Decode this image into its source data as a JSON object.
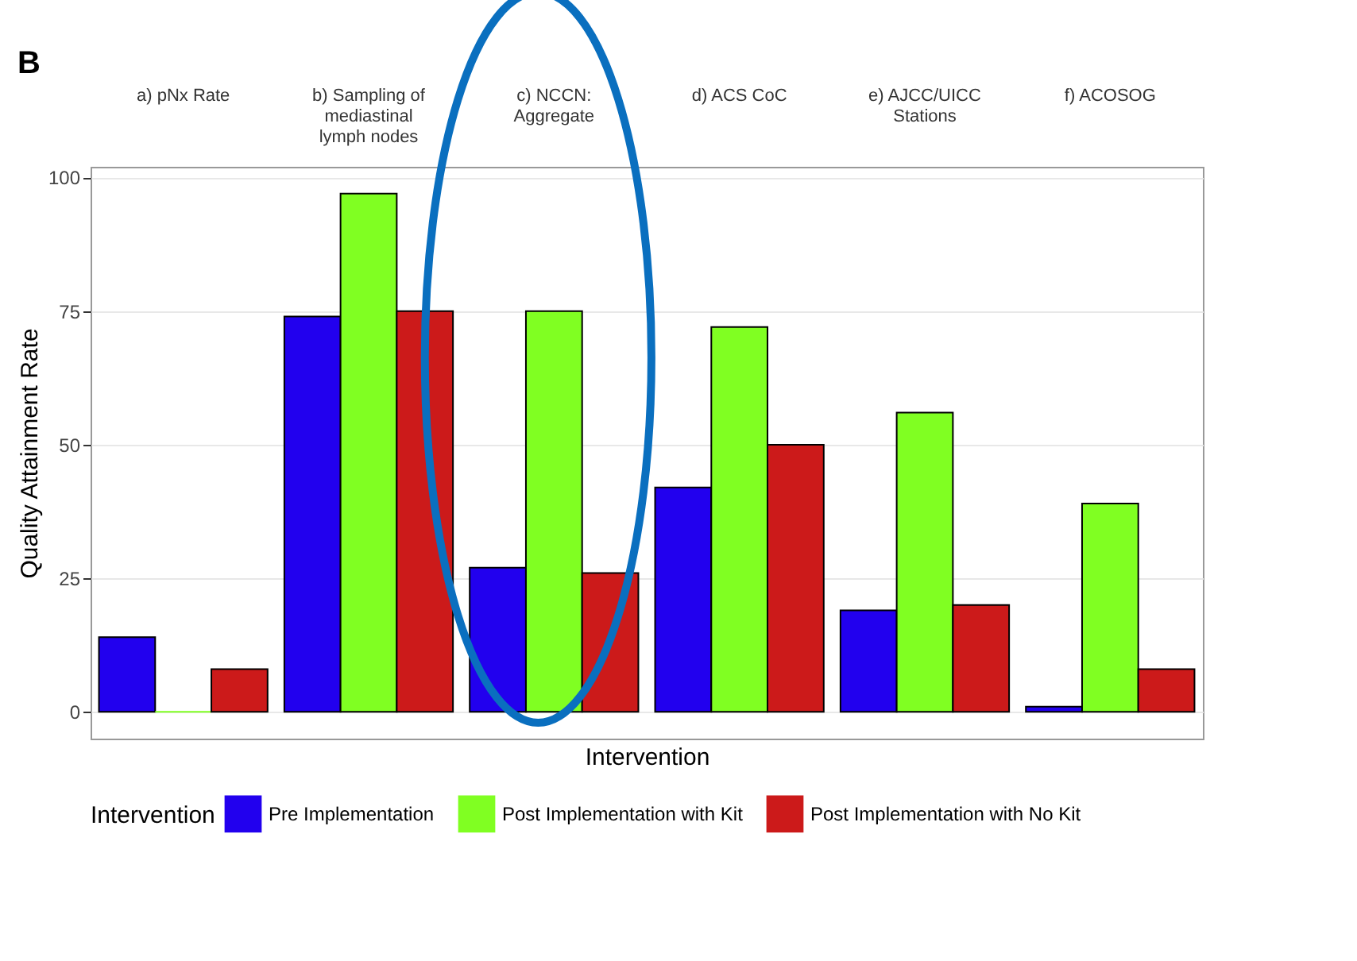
{
  "chart_data": {
    "type": "bar",
    "title": "B",
    "xlabel": "Intervention",
    "ylabel": "Quality Attainment Rate",
    "legend_title": "Intervention",
    "categories": [
      "a) pNx Rate",
      "b) Sampling of mediastinal lymph nodes",
      "c) NCCN: Aggregate",
      "d) ACS CoC",
      "e) AJCC/UICC Stations",
      "f) ACOSOG"
    ],
    "series": [
      {
        "name": "Pre Implementation",
        "color": "#2200ee",
        "values": [
          14,
          74,
          27,
          42,
          19,
          1
        ]
      },
      {
        "name": "Post Implementation with Kit",
        "color": "#80ff22",
        "values": [
          0,
          97,
          75,
          72,
          56,
          39
        ]
      },
      {
        "name": "Post Implementation with No Kit",
        "color": "#cc1a1a",
        "values": [
          8,
          75,
          26,
          50,
          20,
          8
        ]
      }
    ],
    "ylim": [
      -5,
      102
    ],
    "yticks": [
      0,
      25,
      50,
      75,
      100
    ],
    "grid": "y",
    "legend": "bottom"
  }
}
